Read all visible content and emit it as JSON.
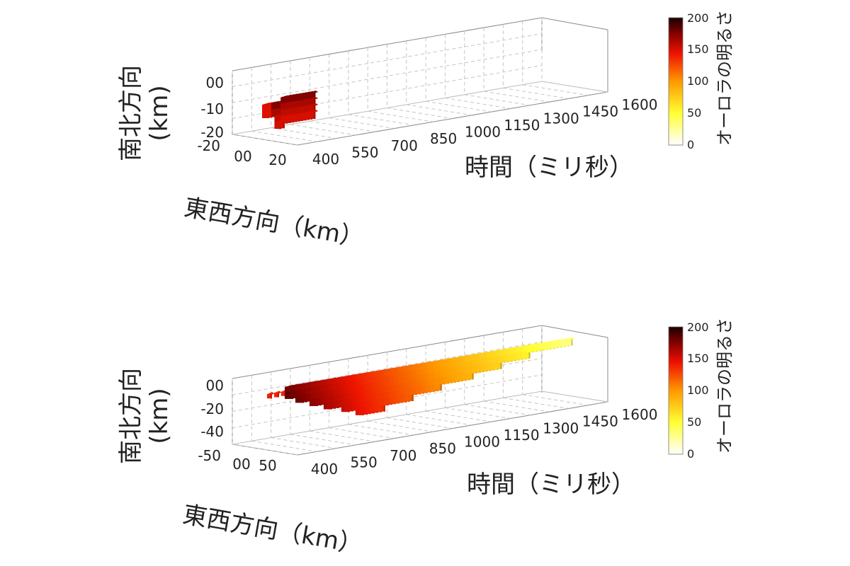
{
  "chart_data": [
    {
      "type": "3d-voxel",
      "xlabel": "時間（ミリ秒）",
      "ylabel": "東西方向（km）",
      "zlabel_line1": "南北方向",
      "zlabel_line2": "(km)",
      "x_ticks": [
        "400",
        "550",
        "700",
        "850",
        "1000",
        "1150",
        "1300",
        "1450",
        "1600"
      ],
      "y_ticks": [
        "-20",
        "00",
        "20"
      ],
      "z_ticks": [
        "00",
        "-10",
        "-20"
      ],
      "xlim": [
        400,
        1600
      ],
      "ylim": [
        -20,
        20
      ],
      "zlim": [
        -20,
        0
      ],
      "colorbar": {
        "label": "オーロラの明るさ",
        "ticks": [
          "200",
          "150",
          "100",
          "50",
          "0"
        ],
        "range": [
          0,
          200
        ],
        "colormap": "hot-reversed"
      },
      "blob": {
        "t_start": 400,
        "t_end": 580,
        "brightness": 170
      }
    },
    {
      "type": "3d-voxel",
      "xlabel": "時間（ミリ秒）",
      "ylabel": "東西方向（km）",
      "zlabel_line1": "南北方向",
      "zlabel_line2": "(km)",
      "x_ticks": [
        "400",
        "550",
        "700",
        "850",
        "1000",
        "1150",
        "1300",
        "1450",
        "1600"
      ],
      "y_ticks": [
        "-50",
        "00",
        "50"
      ],
      "z_ticks": [
        "00",
        "-20",
        "-40"
      ],
      "xlim": [
        400,
        1600
      ],
      "ylim": [
        -50,
        50
      ],
      "zlim": [
        -40,
        0
      ],
      "colorbar": {
        "label": "オーロラの明るさ",
        "ticks": [
          "200",
          "150",
          "100",
          "50",
          "0"
        ],
        "range": [
          0,
          200
        ],
        "colormap": "hot-reversed"
      },
      "blob": {
        "t_start": 400,
        "t_end": 1600,
        "brightness_start": 190,
        "brightness_end": 30
      }
    }
  ]
}
